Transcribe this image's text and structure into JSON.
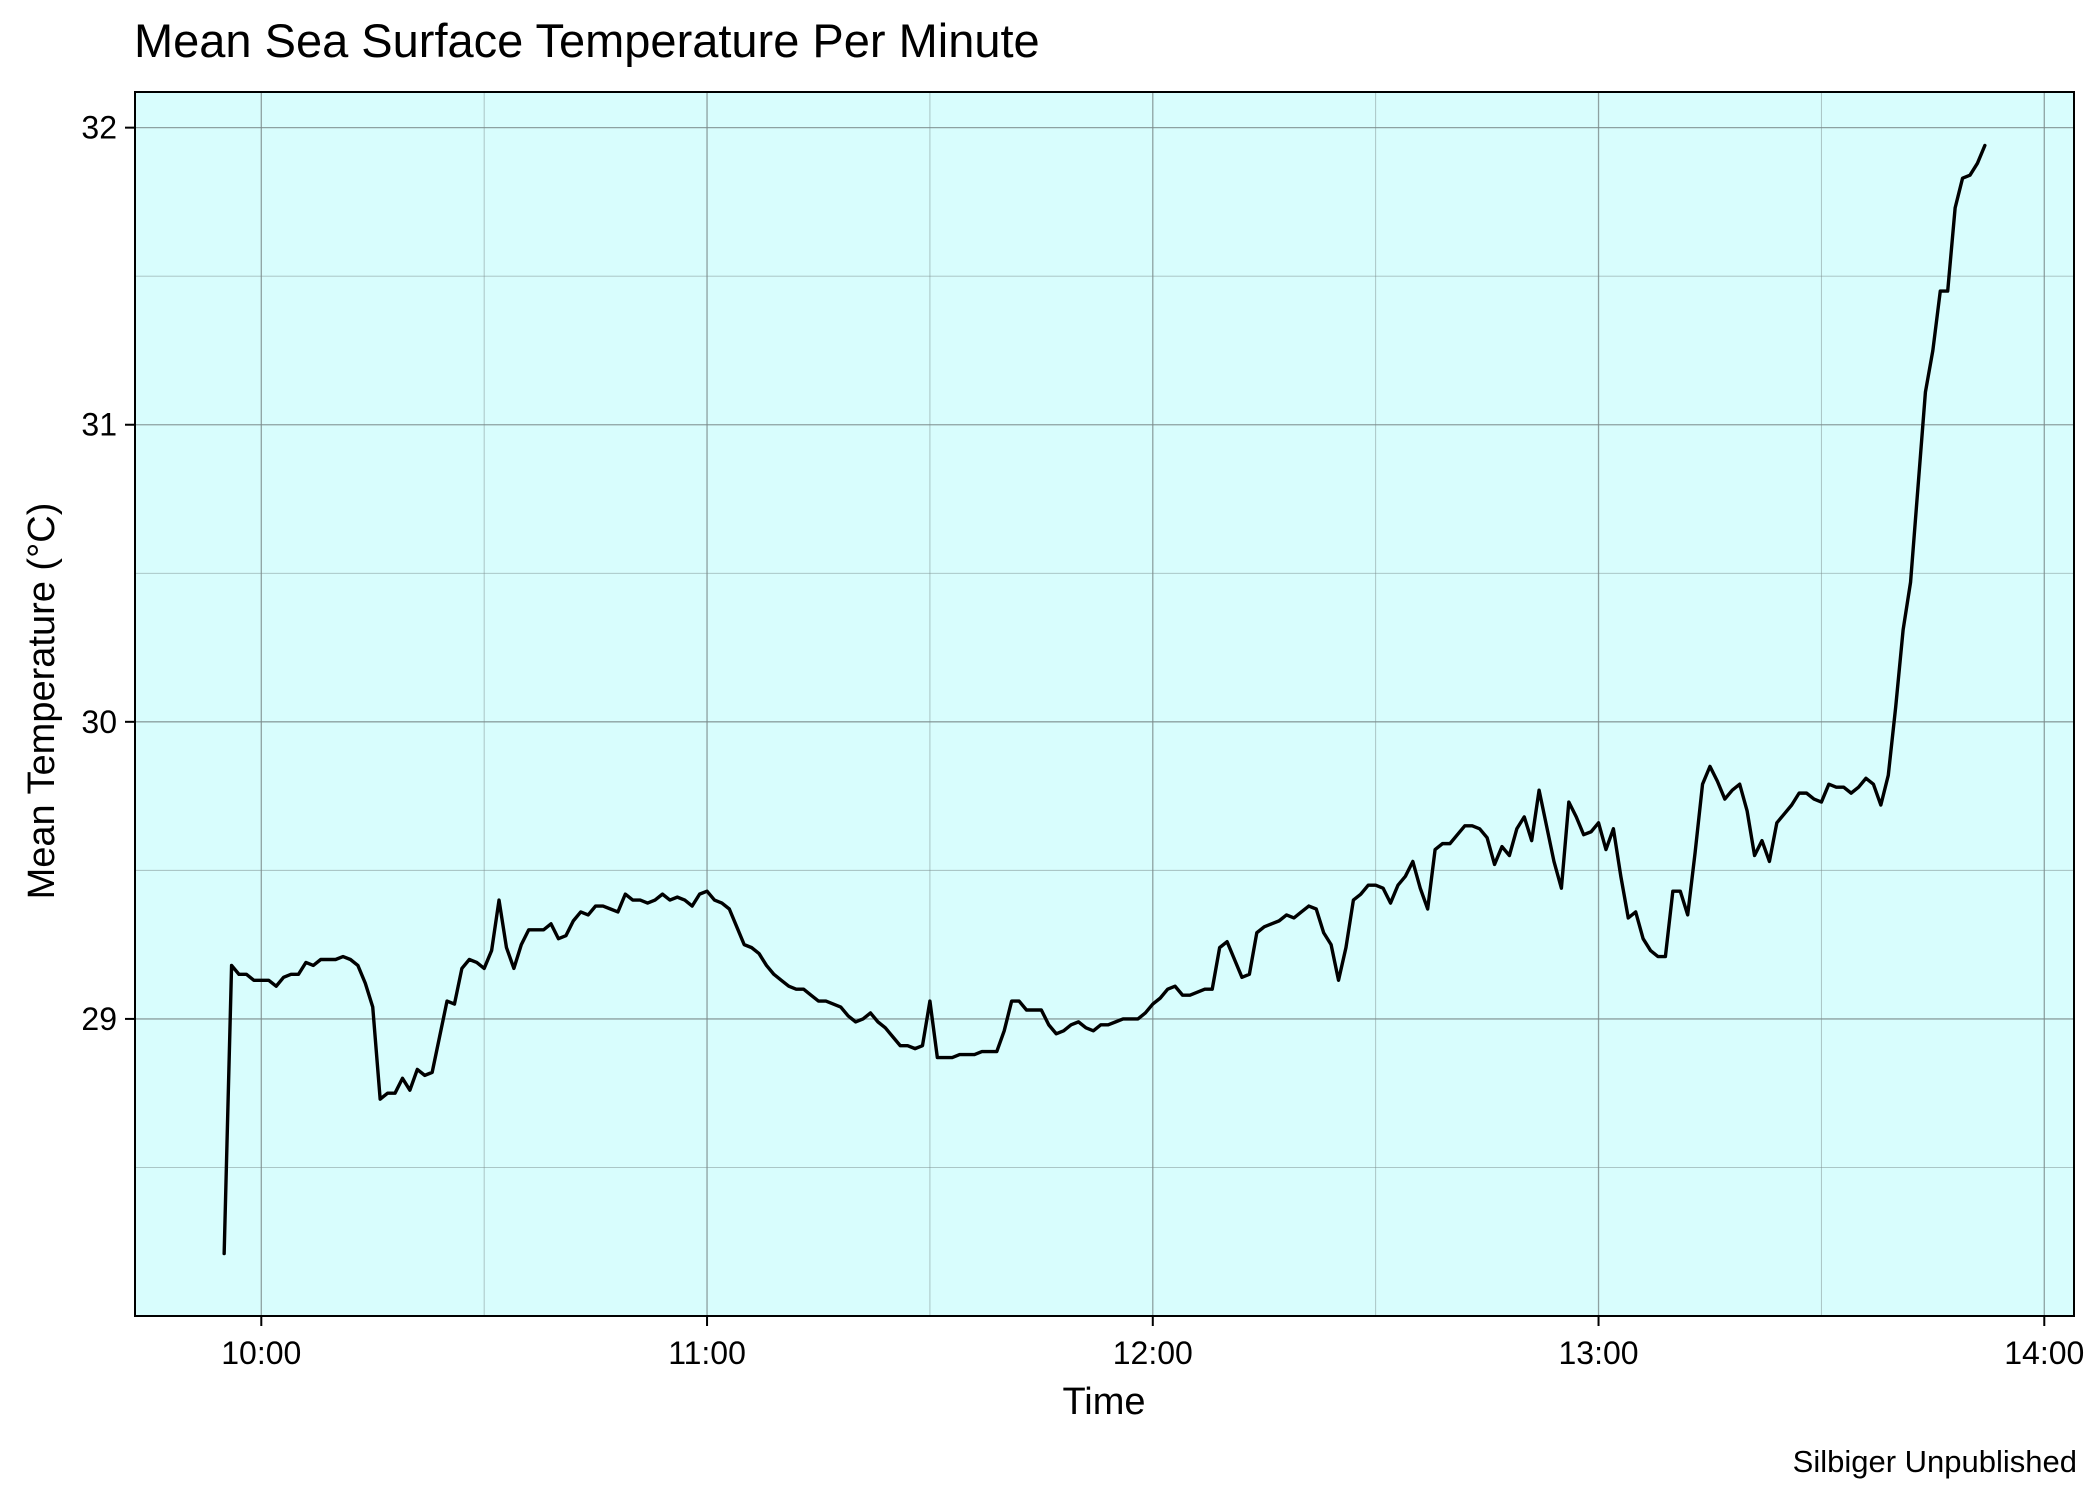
{
  "chart_data": {
    "type": "line",
    "title": "Mean Sea Surface Temperature Per Minute",
    "xlabel": "Time",
    "ylabel": "Mean Temperature (°C)",
    "caption": "Silbiger Unpublished",
    "x_unit": "time of day (HH:MM)",
    "xlim": [
      "09:43",
      "14:04"
    ],
    "ylim": [
      28.0,
      32.12
    ],
    "x_ticks": [
      "10:00",
      "11:00",
      "12:00",
      "13:00",
      "14:00"
    ],
    "y_ticks": [
      29,
      30,
      31,
      32
    ],
    "grid": true,
    "legend": "none",
    "colors": {
      "panel_background": "#d8fdfd",
      "line": "#000000",
      "grid": "#7a8a8a"
    },
    "series": [
      {
        "x": [
          "09:55",
          "09:56",
          "09:57",
          "09:58",
          "09:59",
          "10:00",
          "10:01",
          "10:02",
          "10:03",
          "10:04",
          "10:05",
          "10:06",
          "10:07",
          "10:08",
          "10:09",
          "10:10",
          "10:11",
          "10:12",
          "10:13",
          "10:14",
          "10:15",
          "10:16",
          "10:17",
          "10:18",
          "10:19",
          "10:20",
          "10:21",
          "10:22",
          "10:23",
          "10:24",
          "10:25",
          "10:26",
          "10:27",
          "10:28",
          "10:29",
          "10:30",
          "10:31",
          "10:32",
          "10:33",
          "10:34",
          "10:35",
          "10:36",
          "10:37",
          "10:38",
          "10:39",
          "10:40",
          "10:41",
          "10:42",
          "10:43",
          "10:44",
          "10:45",
          "10:46",
          "10:47",
          "10:48",
          "10:49",
          "10:50",
          "10:51",
          "10:52",
          "10:53",
          "10:54",
          "10:55",
          "10:56",
          "10:57",
          "10:58",
          "10:59",
          "11:00",
          "11:01",
          "11:02",
          "11:03",
          "11:04",
          "11:05",
          "11:06",
          "11:07",
          "11:08",
          "11:09",
          "11:10",
          "11:11",
          "11:12",
          "11:13",
          "11:14",
          "11:15",
          "11:16",
          "11:17",
          "11:18",
          "11:19",
          "11:20",
          "11:21",
          "11:22",
          "11:23",
          "11:24",
          "11:25",
          "11:26",
          "11:27",
          "11:28",
          "11:29",
          "11:30",
          "11:31",
          "11:32",
          "11:33",
          "11:34",
          "11:35",
          "11:36",
          "11:37",
          "11:38",
          "11:39",
          "11:40",
          "11:41",
          "11:42",
          "11:43",
          "11:44",
          "11:45",
          "11:46",
          "11:47",
          "11:48",
          "11:49",
          "11:50",
          "11:51",
          "11:52",
          "11:53",
          "11:54",
          "11:55",
          "11:56",
          "11:57",
          "11:58",
          "11:59",
          "12:00",
          "12:01",
          "12:02",
          "12:03",
          "12:04",
          "12:05",
          "12:06",
          "12:07",
          "12:08",
          "12:09",
          "12:10",
          "12:11",
          "12:12",
          "12:13",
          "12:14",
          "12:15",
          "12:16",
          "12:17",
          "12:18",
          "12:19",
          "12:20",
          "12:21",
          "12:22",
          "12:23",
          "12:24",
          "12:25",
          "12:26",
          "12:27",
          "12:28",
          "12:29",
          "12:30",
          "12:31",
          "12:32",
          "12:33",
          "12:34",
          "12:35",
          "12:36",
          "12:37",
          "12:38",
          "12:39",
          "12:40",
          "12:41",
          "12:42",
          "12:43",
          "12:44",
          "12:45",
          "12:46",
          "12:47",
          "12:48",
          "12:49",
          "12:50",
          "12:51",
          "12:52",
          "12:53",
          "12:54",
          "12:55",
          "12:56",
          "12:57",
          "12:58",
          "12:59",
          "13:00",
          "13:01",
          "13:02",
          "13:03",
          "13:04",
          "13:05",
          "13:06",
          "13:07",
          "13:08",
          "13:09",
          "13:10",
          "13:11",
          "13:12",
          "13:13",
          "13:14",
          "13:15",
          "13:16",
          "13:17",
          "13:18",
          "13:19",
          "13:20",
          "13:21",
          "13:22",
          "13:23",
          "13:24",
          "13:25",
          "13:26",
          "13:27",
          "13:28",
          "13:29",
          "13:30",
          "13:31",
          "13:32",
          "13:33",
          "13:34",
          "13:35",
          "13:36",
          "13:37",
          "13:38",
          "13:39",
          "13:40",
          "13:41",
          "13:42",
          "13:43",
          "13:44",
          "13:45",
          "13:46",
          "13:47",
          "13:48",
          "13:49",
          "13:50",
          "13:51",
          "13:52"
        ],
        "values": [
          28.21,
          29.18,
          29.15,
          29.15,
          29.13,
          29.13,
          29.13,
          29.11,
          29.14,
          29.15,
          29.15,
          29.19,
          29.18,
          29.2,
          29.2,
          29.2,
          29.21,
          29.2,
          29.18,
          29.12,
          29.04,
          28.73,
          28.75,
          28.75,
          28.8,
          28.76,
          28.83,
          28.81,
          28.82,
          28.94,
          29.06,
          29.05,
          29.17,
          29.2,
          29.19,
          29.17,
          29.23,
          29.4,
          29.24,
          29.17,
          29.25,
          29.3,
          29.3,
          29.3,
          29.32,
          29.27,
          29.28,
          29.33,
          29.36,
          29.35,
          29.38,
          29.38,
          29.37,
          29.36,
          29.42,
          29.4,
          29.4,
          29.39,
          29.4,
          29.42,
          29.4,
          29.41,
          29.4,
          29.38,
          29.42,
          29.43,
          29.4,
          29.39,
          29.37,
          29.31,
          29.25,
          29.24,
          29.22,
          29.18,
          29.15,
          29.13,
          29.11,
          29.1,
          29.1,
          29.08,
          29.06,
          29.06,
          29.05,
          29.04,
          29.01,
          28.99,
          29.0,
          29.02,
          28.99,
          28.97,
          28.94,
          28.91,
          28.91,
          28.9,
          28.91,
          29.06,
          28.87,
          28.87,
          28.87,
          28.88,
          28.88,
          28.88,
          28.89,
          28.89,
          28.89,
          28.96,
          29.06,
          29.06,
          29.03,
          29.03,
          29.03,
          28.98,
          28.95,
          28.96,
          28.98,
          28.99,
          28.97,
          28.96,
          28.98,
          28.98,
          28.99,
          29.0,
          29.0,
          29.0,
          29.02,
          29.05,
          29.07,
          29.1,
          29.11,
          29.08,
          29.08,
          29.09,
          29.1,
          29.1,
          29.24,
          29.26,
          29.2,
          29.14,
          29.15,
          29.29,
          29.31,
          29.32,
          29.33,
          29.35,
          29.34,
          29.36,
          29.38,
          29.37,
          29.29,
          29.25,
          29.13,
          29.24,
          29.4,
          29.42,
          29.45,
          29.45,
          29.44,
          29.39,
          29.45,
          29.48,
          29.53,
          29.44,
          29.37,
          29.57,
          29.59,
          29.59,
          29.62,
          29.65,
          29.65,
          29.64,
          29.61,
          29.52,
          29.58,
          29.55,
          29.64,
          29.68,
          29.6,
          29.77,
          29.65,
          29.53,
          29.44,
          29.73,
          29.68,
          29.62,
          29.63,
          29.66,
          29.57,
          29.64,
          29.48,
          29.34,
          29.36,
          29.27,
          29.23,
          29.21,
          29.21,
          29.43,
          29.43,
          29.35,
          29.56,
          29.79,
          29.85,
          29.8,
          29.74,
          29.77,
          29.79,
          29.7,
          29.55,
          29.6,
          29.53,
          29.66,
          29.69,
          29.72,
          29.76,
          29.76,
          29.74,
          29.73,
          29.79,
          29.78,
          29.78,
          29.76,
          29.78,
          29.81,
          29.79,
          29.72,
          29.82,
          30.05,
          30.31,
          30.47,
          30.79,
          31.11,
          31.25,
          31.45,
          31.45,
          31.73,
          31.83,
          31.84,
          31.88,
          31.94
        ]
      }
    ]
  }
}
